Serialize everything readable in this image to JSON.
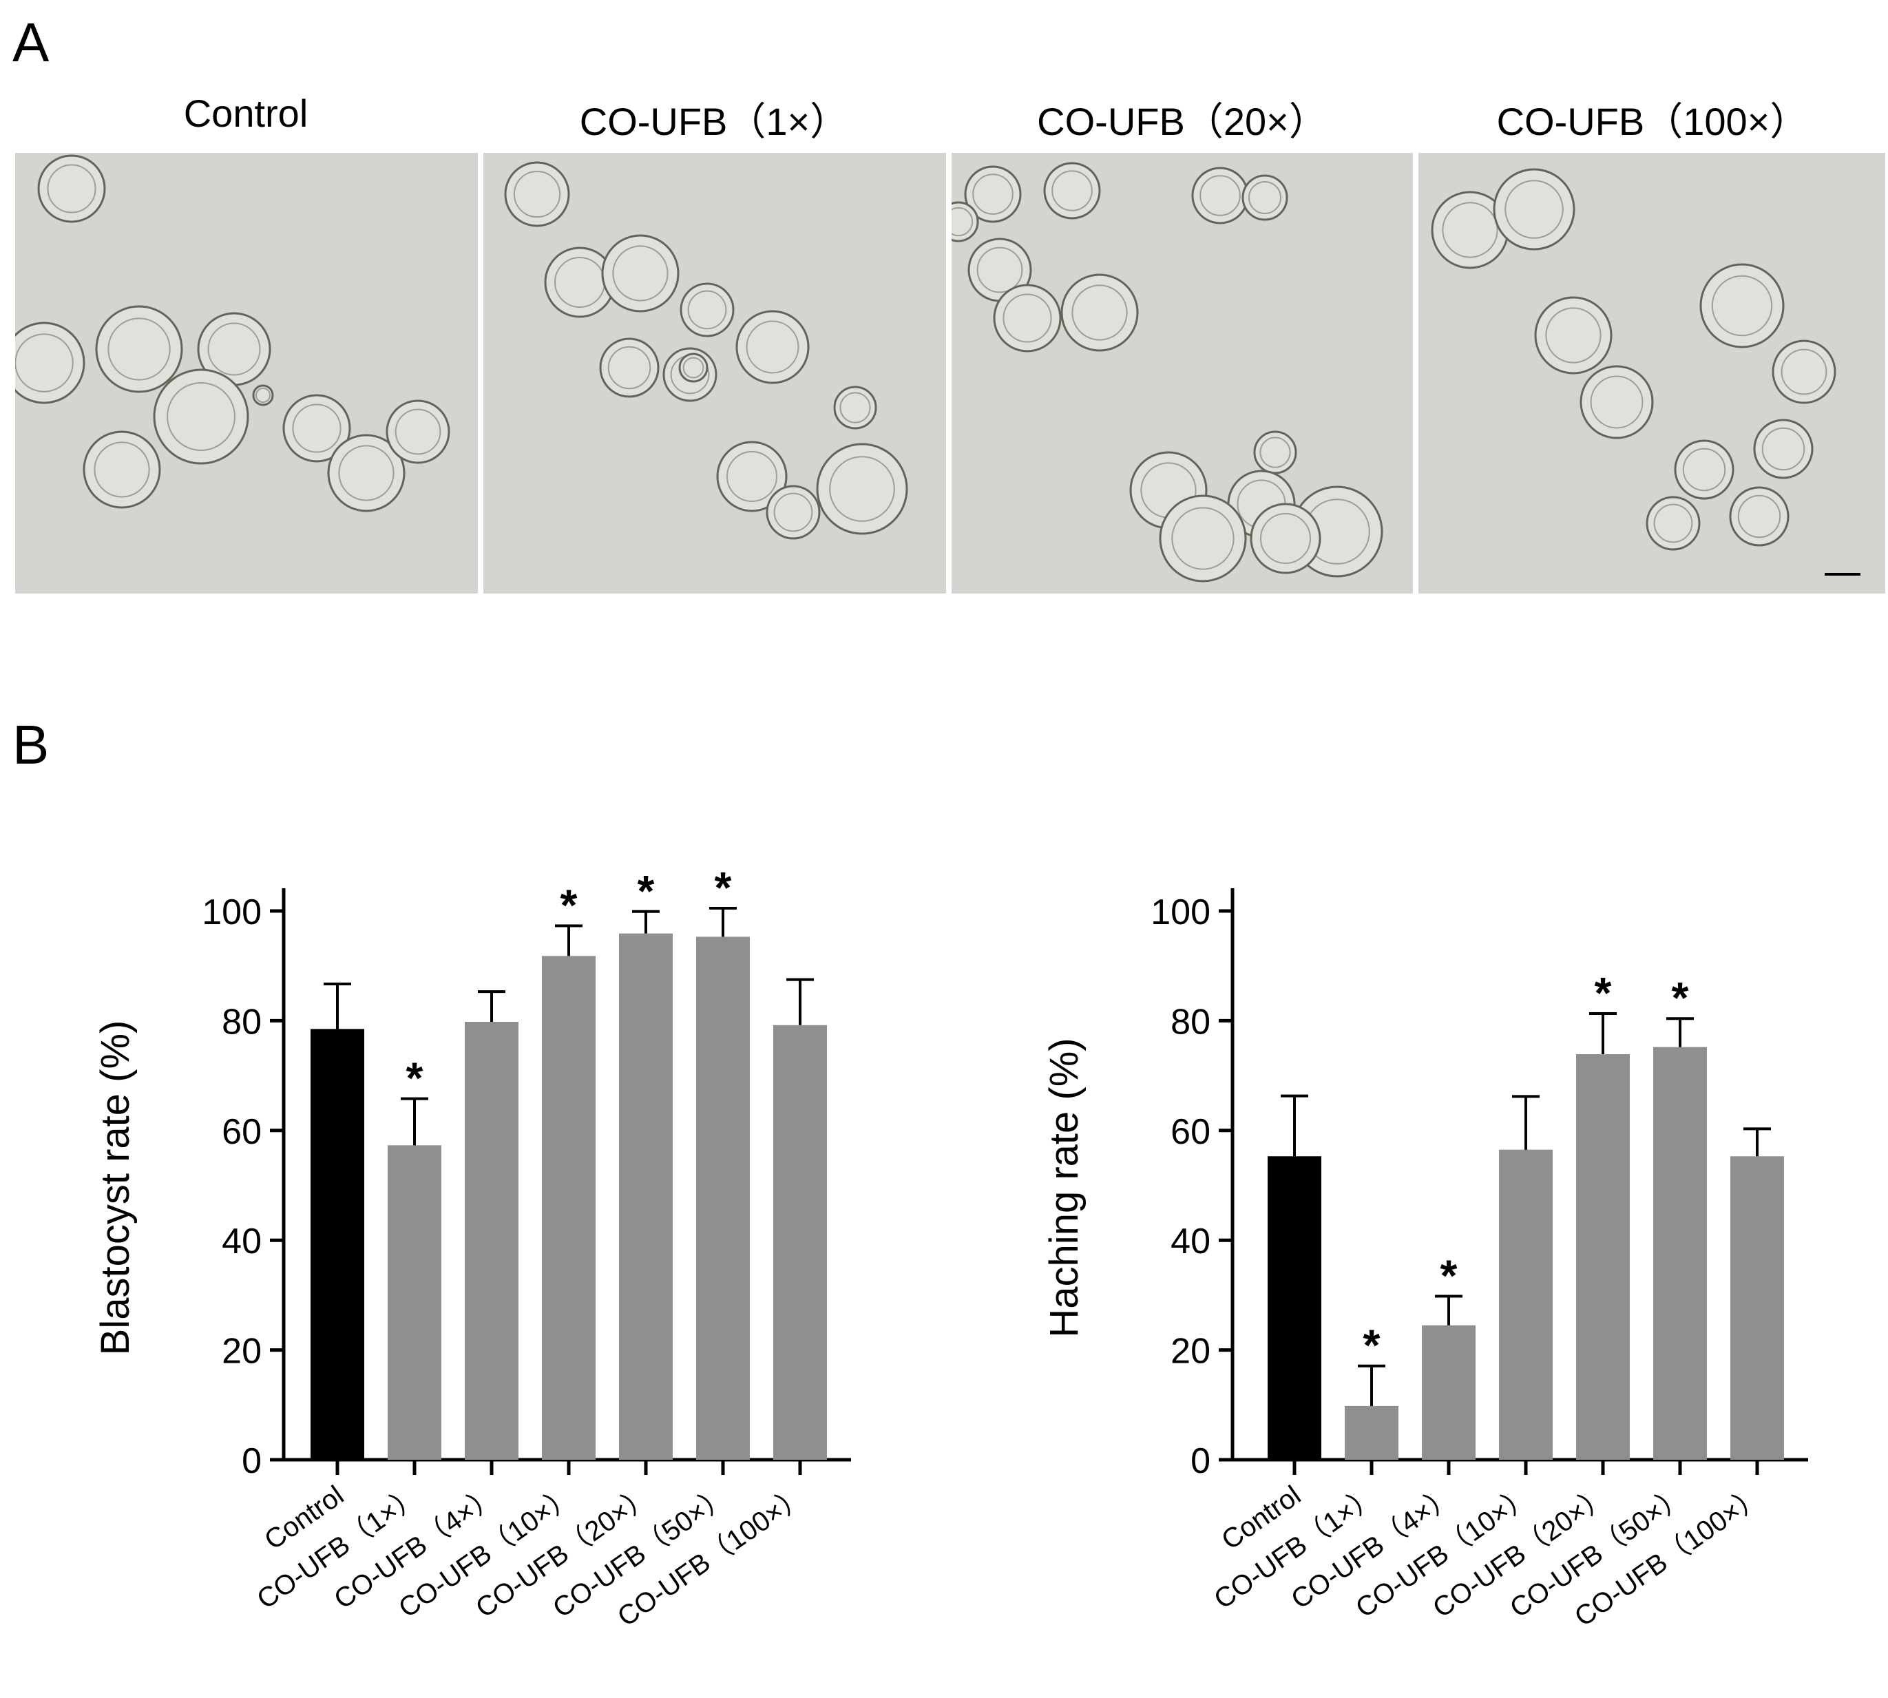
{
  "panel_a": {
    "letter": "A",
    "image_titles": [
      "Control",
      "CO-UFB（1×）",
      "CO-UFB（20×）",
      "CO-UFB（100×）"
    ]
  },
  "panel_b": {
    "letter": "B"
  },
  "colors": {
    "control_bar": "#000000",
    "treatment_bar": "#8f8f8f",
    "micro_bg": "#d4d4d0"
  },
  "chart_data": [
    {
      "type": "bar",
      "title": "",
      "ylabel": "Blastocyst rate (%)",
      "xlabel": "",
      "ylim": [
        0,
        100
      ],
      "yticks": [
        0,
        20,
        40,
        60,
        80,
        100
      ],
      "categories": [
        "Control",
        "CO-UFB（1×）",
        "CO-UFB（4×）",
        "CO-UFB（10×）",
        "CO-UFB（20×）",
        "CO-UFB（50×）",
        "CO-UFB（100×）"
      ],
      "values": [
        78.5,
        57.3,
        79.8,
        91.8,
        95.9,
        95.3,
        79.2
      ],
      "errors": [
        8.2,
        8.5,
        5.5,
        5.5,
        4.0,
        5.2,
        8.3
      ],
      "significance": [
        "",
        "*",
        "",
        "*",
        "*",
        "*",
        ""
      ]
    },
    {
      "type": "bar",
      "title": "",
      "ylabel": "Haching rate (%)",
      "xlabel": "",
      "ylim": [
        0,
        100
      ],
      "yticks": [
        0,
        20,
        40,
        60,
        80,
        100
      ],
      "categories": [
        "Control",
        "CO-UFB（1×）",
        "CO-UFB（4×）",
        "CO-UFB（10×）",
        "CO-UFB（20×）",
        "CO-UFB（50×）",
        "CO-UFB（100×）"
      ],
      "values": [
        55.3,
        9.8,
        24.5,
        56.5,
        73.9,
        75.2,
        55.3
      ],
      "errors": [
        11.0,
        7.3,
        5.3,
        9.7,
        7.4,
        5.2,
        5.0
      ],
      "significance": [
        "",
        "*",
        "*",
        "",
        "*",
        "*",
        ""
      ]
    }
  ]
}
